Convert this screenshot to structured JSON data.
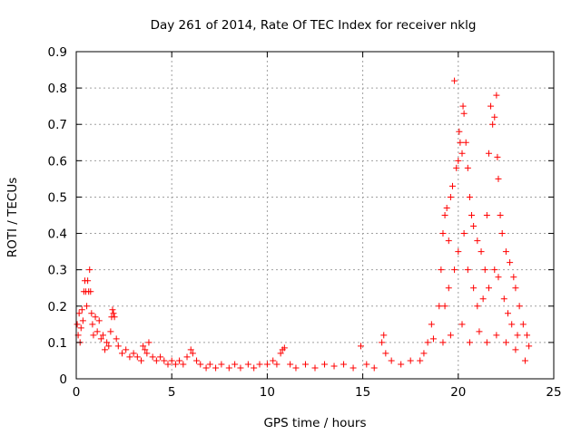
{
  "chart_data": {
    "type": "scatter",
    "title": "Day 261 of 2014, Rate Of TEC Index for receiver nklg",
    "xlabel": "GPS time / hours",
    "ylabel": "ROTI / TECUs",
    "xlim": [
      0,
      25
    ],
    "ylim": [
      0,
      0.9
    ],
    "xticks": [
      0,
      5,
      10,
      15,
      20,
      25
    ],
    "xtick_labels": [
      "0",
      "5",
      "10",
      "15",
      "20",
      "25"
    ],
    "yticks": [
      0,
      0.1,
      0.2,
      0.3,
      0.4,
      0.5,
      0.6,
      0.7,
      0.8,
      0.9
    ],
    "ytick_labels": [
      "0",
      "0.1",
      "0.2",
      "0.3",
      "0.4",
      "0.5",
      "0.6",
      "0.7",
      "0.8",
      "0.9"
    ],
    "grid": true,
    "marker": "+",
    "color": "#ff0000",
    "series": [
      {
        "name": "ROTI",
        "points": [
          [
            0.05,
            0.15
          ],
          [
            0.1,
            0.12
          ],
          [
            0.15,
            0.18
          ],
          [
            0.2,
            0.1
          ],
          [
            0.25,
            0.14
          ],
          [
            0.3,
            0.19
          ],
          [
            0.35,
            0.16
          ],
          [
            0.4,
            0.24
          ],
          [
            0.45,
            0.27
          ],
          [
            0.5,
            0.24
          ],
          [
            0.55,
            0.2
          ],
          [
            0.6,
            0.27
          ],
          [
            0.65,
            0.24
          ],
          [
            0.7,
            0.3
          ],
          [
            0.75,
            0.24
          ],
          [
            0.8,
            0.18
          ],
          [
            0.85,
            0.15
          ],
          [
            0.9,
            0.12
          ],
          [
            1.0,
            0.17
          ],
          [
            1.1,
            0.13
          ],
          [
            1.2,
            0.16
          ],
          [
            1.3,
            0.11
          ],
          [
            1.4,
            0.12
          ],
          [
            1.5,
            0.08
          ],
          [
            1.6,
            0.1
          ],
          [
            1.7,
            0.09
          ],
          [
            1.8,
            0.13
          ],
          [
            1.85,
            0.17
          ],
          [
            1.9,
            0.19
          ],
          [
            1.95,
            0.18
          ],
          [
            2.0,
            0.17
          ],
          [
            2.1,
            0.11
          ],
          [
            2.2,
            0.09
          ],
          [
            2.4,
            0.07
          ],
          [
            2.6,
            0.08
          ],
          [
            2.8,
            0.06
          ],
          [
            3.0,
            0.07
          ],
          [
            3.2,
            0.06
          ],
          [
            3.4,
            0.05
          ],
          [
            3.5,
            0.09
          ],
          [
            3.6,
            0.08
          ],
          [
            3.7,
            0.07
          ],
          [
            3.8,
            0.1
          ],
          [
            4.0,
            0.06
          ],
          [
            4.2,
            0.05
          ],
          [
            4.4,
            0.06
          ],
          [
            4.6,
            0.05
          ],
          [
            4.8,
            0.04
          ],
          [
            5.0,
            0.05
          ],
          [
            5.2,
            0.04
          ],
          [
            5.4,
            0.05
          ],
          [
            5.6,
            0.04
          ],
          [
            5.8,
            0.06
          ],
          [
            6.0,
            0.08
          ],
          [
            6.1,
            0.07
          ],
          [
            6.3,
            0.05
          ],
          [
            6.5,
            0.04
          ],
          [
            6.8,
            0.03
          ],
          [
            7.0,
            0.04
          ],
          [
            7.3,
            0.03
          ],
          [
            7.6,
            0.04
          ],
          [
            8.0,
            0.03
          ],
          [
            8.3,
            0.04
          ],
          [
            8.6,
            0.03
          ],
          [
            9.0,
            0.04
          ],
          [
            9.3,
            0.03
          ],
          [
            9.6,
            0.04
          ],
          [
            10.0,
            0.04
          ],
          [
            10.3,
            0.05
          ],
          [
            10.5,
            0.04
          ],
          [
            10.7,
            0.07
          ],
          [
            10.8,
            0.08
          ],
          [
            10.9,
            0.085
          ],
          [
            11.2,
            0.04
          ],
          [
            11.5,
            0.03
          ],
          [
            12.0,
            0.04
          ],
          [
            12.5,
            0.03
          ],
          [
            13.0,
            0.04
          ],
          [
            13.5,
            0.035
          ],
          [
            14.0,
            0.04
          ],
          [
            14.5,
            0.03
          ],
          [
            14.9,
            0.09
          ],
          [
            15.2,
            0.04
          ],
          [
            15.6,
            0.03
          ],
          [
            16.0,
            0.1
          ],
          [
            16.1,
            0.12
          ],
          [
            16.2,
            0.07
          ],
          [
            16.5,
            0.05
          ],
          [
            17.0,
            0.04
          ],
          [
            17.5,
            0.05
          ],
          [
            18.0,
            0.05
          ],
          [
            18.2,
            0.07
          ],
          [
            18.4,
            0.1
          ],
          [
            18.6,
            0.15
          ],
          [
            18.7,
            0.11
          ],
          [
            19.0,
            0.2
          ],
          [
            19.1,
            0.3
          ],
          [
            19.2,
            0.4
          ],
          [
            19.3,
            0.45
          ],
          [
            19.4,
            0.47
          ],
          [
            19.5,
            0.38
          ],
          [
            19.6,
            0.5
          ],
          [
            19.7,
            0.53
          ],
          [
            19.8,
            0.82
          ],
          [
            19.9,
            0.58
          ],
          [
            20.0,
            0.6
          ],
          [
            20.05,
            0.68
          ],
          [
            20.1,
            0.65
          ],
          [
            20.2,
            0.62
          ],
          [
            20.25,
            0.75
          ],
          [
            20.3,
            0.73
          ],
          [
            20.4,
            0.65
          ],
          [
            20.5,
            0.58
          ],
          [
            20.6,
            0.5
          ],
          [
            20.7,
            0.45
          ],
          [
            20.8,
            0.42
          ],
          [
            21.0,
            0.38
          ],
          [
            21.2,
            0.35
          ],
          [
            21.4,
            0.3
          ],
          [
            21.5,
            0.45
          ],
          [
            21.6,
            0.62
          ],
          [
            21.7,
            0.75
          ],
          [
            21.8,
            0.7
          ],
          [
            21.9,
            0.72
          ],
          [
            22.0,
            0.78
          ],
          [
            22.05,
            0.61
          ],
          [
            22.1,
            0.55
          ],
          [
            22.2,
            0.45
          ],
          [
            22.3,
            0.4
          ],
          [
            22.5,
            0.35
          ],
          [
            22.7,
            0.32
          ],
          [
            22.9,
            0.28
          ],
          [
            23.0,
            0.25
          ],
          [
            23.2,
            0.2
          ],
          [
            23.4,
            0.15
          ],
          [
            23.6,
            0.12
          ],
          [
            23.7,
            0.09
          ],
          [
            19.3,
            0.2
          ],
          [
            19.5,
            0.25
          ],
          [
            19.8,
            0.3
          ],
          [
            20.0,
            0.35
          ],
          [
            20.3,
            0.4
          ],
          [
            20.5,
            0.3
          ],
          [
            20.8,
            0.25
          ],
          [
            21.0,
            0.2
          ],
          [
            21.3,
            0.22
          ],
          [
            21.6,
            0.25
          ],
          [
            21.9,
            0.3
          ],
          [
            22.1,
            0.28
          ],
          [
            22.4,
            0.22
          ],
          [
            22.6,
            0.18
          ],
          [
            22.8,
            0.15
          ],
          [
            23.1,
            0.12
          ],
          [
            19.2,
            0.1
          ],
          [
            19.6,
            0.12
          ],
          [
            20.2,
            0.15
          ],
          [
            20.6,
            0.1
          ],
          [
            21.1,
            0.13
          ],
          [
            21.5,
            0.1
          ],
          [
            22.0,
            0.12
          ],
          [
            22.5,
            0.1
          ],
          [
            23.0,
            0.08
          ],
          [
            23.5,
            0.05
          ]
        ]
      }
    ]
  }
}
